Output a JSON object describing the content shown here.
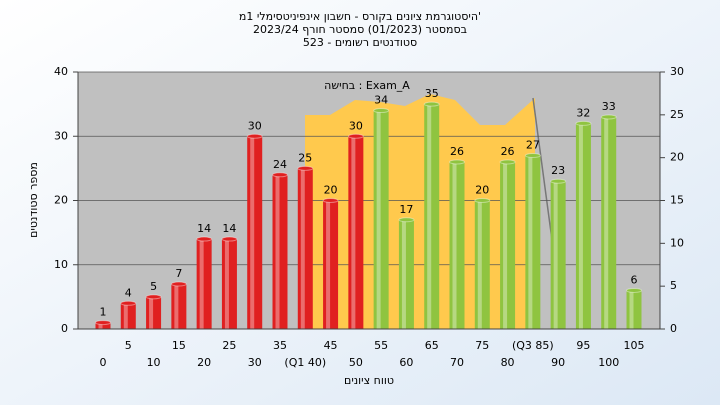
{
  "chart_data": {
    "type": "bar",
    "title": [
      "היסטוגרמת ציונים בקורס - חשבון אינפיניטסימלי 1מ'",
      "בסמסטר  (01/2023)  סמסטר חורף  2023/24",
      "523 - סטודנטים רשומים"
    ],
    "annotation": "בחישה : Exam_A",
    "x_label": "טווח ציונים",
    "y_label": "מספר סטודנטים",
    "categories": [
      "0",
      "5",
      "10",
      "15",
      "20",
      "25",
      "30",
      "35",
      "(Q1 40)",
      "45",
      "50",
      "55",
      "60",
      "65",
      "70",
      "75",
      "80",
      "(Q3 85)",
      "90",
      "95",
      "100",
      "105"
    ],
    "values": [
      1,
      4,
      5,
      7,
      14,
      14,
      30,
      24,
      25,
      20,
      30,
      34,
      17,
      35,
      26,
      20,
      26,
      27,
      23,
      32,
      33,
      6
    ],
    "colors": [
      "#e02020",
      "#e02020",
      "#e02020",
      "#e02020",
      "#e02020",
      "#e02020",
      "#e02020",
      "#e02020",
      "#e02020",
      "#e02020",
      "#e02020",
      "#8fc440",
      "#8fc440",
      "#8fc440",
      "#8fc440",
      "#8fc440",
      "#8fc440",
      "#8fc440",
      "#8fc440",
      "#8fc440",
      "#8fc440",
      "#8fc440"
    ],
    "ylim": [
      0,
      40
    ],
    "yticks": [
      0,
      10,
      20,
      30,
      40
    ],
    "y2lim": [
      0,
      30
    ],
    "y2ticks": [
      0,
      5,
      10,
      15,
      20,
      25,
      30
    ],
    "grid": true
  }
}
